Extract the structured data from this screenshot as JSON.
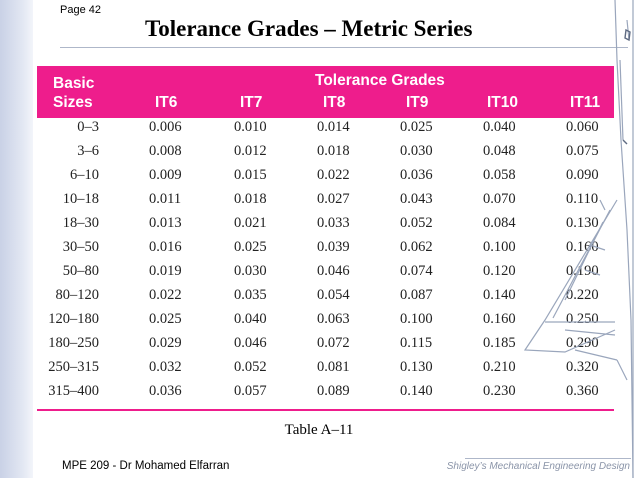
{
  "page": {
    "number": "Page 42",
    "title": "Tolerance Grades – Metric Series"
  },
  "table": {
    "basic_sizes_label_1": "Basic",
    "basic_sizes_label_2": "Sizes",
    "group_label": "Tolerance Grades",
    "columns": [
      "IT6",
      "IT7",
      "IT8",
      "IT9",
      "IT10",
      "IT11"
    ],
    "rows": [
      {
        "size": "0–3",
        "values": [
          "0.006",
          "0.010",
          "0.014",
          "0.025",
          "0.040",
          "0.060"
        ]
      },
      {
        "size": "3–6",
        "values": [
          "0.008",
          "0.012",
          "0.018",
          "0.030",
          "0.048",
          "0.075"
        ]
      },
      {
        "size": "6–10",
        "values": [
          "0.009",
          "0.015",
          "0.022",
          "0.036",
          "0.058",
          "0.090"
        ]
      },
      {
        "size": "10–18",
        "values": [
          "0.011",
          "0.018",
          "0.027",
          "0.043",
          "0.070",
          "0.110"
        ]
      },
      {
        "size": "18–30",
        "values": [
          "0.013",
          "0.021",
          "0.033",
          "0.052",
          "0.084",
          "0.130"
        ]
      },
      {
        "size": "30–50",
        "values": [
          "0.016",
          "0.025",
          "0.039",
          "0.062",
          "0.100",
          "0.160"
        ]
      },
      {
        "size": "50–80",
        "values": [
          "0.019",
          "0.030",
          "0.046",
          "0.074",
          "0.120",
          "0.190"
        ]
      },
      {
        "size": "80–120",
        "values": [
          "0.022",
          "0.035",
          "0.054",
          "0.087",
          "0.140",
          "0.220"
        ]
      },
      {
        "size": "120–180",
        "values": [
          "0.025",
          "0.040",
          "0.063",
          "0.100",
          "0.160",
          "0.250"
        ]
      },
      {
        "size": "180–250",
        "values": [
          "0.029",
          "0.046",
          "0.072",
          "0.115",
          "0.185",
          "0.290"
        ]
      },
      {
        "size": "250–315",
        "values": [
          "0.032",
          "0.052",
          "0.081",
          "0.130",
          "0.210",
          "0.320"
        ]
      },
      {
        "size": "315–400",
        "values": [
          "0.036",
          "0.057",
          "0.089",
          "0.140",
          "0.230",
          "0.360"
        ]
      }
    ]
  },
  "caption": "Table A–11",
  "footer": {
    "left": "MPE  209 - Dr Mohamed Elfarran",
    "right": "Shigley’s Mechanical Engineering Design"
  },
  "colors": {
    "header_bg": "#ee1d8c",
    "header_text": "#ffffff"
  }
}
